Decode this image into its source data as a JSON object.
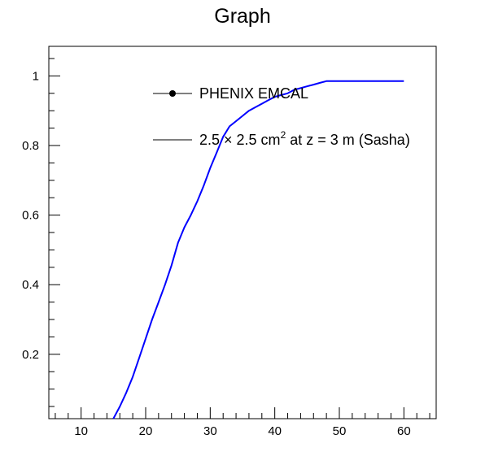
{
  "chart_data": {
    "type": "line",
    "title": "Graph",
    "xlabel": "",
    "ylabel": "",
    "xlim": [
      5,
      65
    ],
    "ylim": [
      0.015,
      1.085
    ],
    "x_ticks": [
      10,
      20,
      30,
      40,
      50,
      60
    ],
    "y_ticks": [
      0.2,
      0.4,
      0.6,
      0.8,
      1
    ],
    "x_tick_labels": [
      "10",
      "20",
      "30",
      "40",
      "50",
      "60"
    ],
    "y_tick_labels": [
      "0.2",
      "0.4",
      "0.6",
      "0.8",
      "1"
    ],
    "grid": false,
    "legend_position": "top-right",
    "legend": [
      {
        "label_pre": "PHENIX EMCAL",
        "label_sup": "",
        "label_post": "",
        "marker": "filled-circle-with-line"
      },
      {
        "label_pre": "2.5 × 2.5 cm",
        "label_sup": "2",
        "label_post": " at z = 3 m (Sasha)",
        "marker": "line"
      }
    ],
    "series": [
      {
        "name": "2.5 × 2.5 cm² at z = 3 m (Sasha)",
        "color": "#0000ff",
        "x": [
          15,
          16,
          17,
          18,
          19,
          20,
          21,
          22,
          23,
          24,
          25,
          26,
          27,
          28,
          29,
          30,
          31,
          32,
          33,
          34,
          35,
          36,
          37,
          38,
          39,
          40,
          41,
          42,
          43,
          44,
          45,
          46,
          47,
          48,
          49,
          50,
          52,
          54,
          56,
          58,
          60
        ],
        "y": [
          0.015,
          0.05,
          0.09,
          0.135,
          0.19,
          0.245,
          0.3,
          0.35,
          0.4,
          0.455,
          0.52,
          0.565,
          0.6,
          0.64,
          0.685,
          0.735,
          0.78,
          0.825,
          0.855,
          0.87,
          0.885,
          0.9,
          0.91,
          0.92,
          0.93,
          0.94,
          0.945,
          0.95,
          0.96,
          0.965,
          0.97,
          0.975,
          0.98,
          0.985,
          0.985,
          0.985,
          0.985,
          0.985,
          0.985,
          0.985,
          0.985
        ]
      }
    ]
  }
}
